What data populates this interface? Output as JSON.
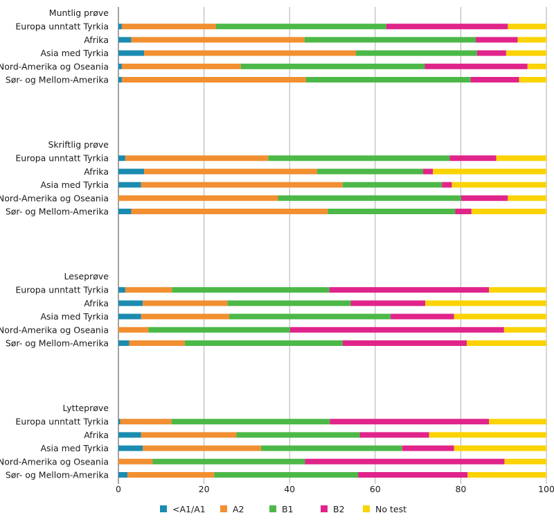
{
  "chart_data": {
    "type": "bar",
    "orientation": "horizontal",
    "stacked": true,
    "title": "",
    "xlabel": "",
    "ylabel": "",
    "xlim": [
      0,
      100
    ],
    "xticks": [
      0,
      20,
      40,
      60,
      80,
      100
    ],
    "grid": true,
    "legend_position": "bottom",
    "categories": [
      "Europa unntatt Tyrkia",
      "Afrika",
      "Asia med Tyrkia",
      "Nord-Amerika og Oseania",
      "Sør- og Mellom-Amerika"
    ],
    "series_meta": [
      {
        "name": "<A1/A1",
        "color": "#1b8bb0"
      },
      {
        "name": "A2",
        "color": "#f18f31"
      },
      {
        "name": "B1",
        "color": "#4cb848"
      },
      {
        "name": "B2",
        "color": "#e0248a"
      },
      {
        "name": "No test",
        "color": "#fbd304"
      }
    ],
    "groups": [
      {
        "title": "Muntlig prøve",
        "rows": [
          [
            0.8,
            22.0,
            39.8,
            28.4,
            9.0
          ],
          [
            3.0,
            40.5,
            40.0,
            9.8,
            6.7
          ],
          [
            6.0,
            49.5,
            28.3,
            6.8,
            9.4
          ],
          [
            0.8,
            27.8,
            43.0,
            24.0,
            4.4
          ],
          [
            0.8,
            43.0,
            38.5,
            11.3,
            6.4
          ]
        ]
      },
      {
        "title": "Skriftlig prøve",
        "rows": [
          [
            1.6,
            33.4,
            42.4,
            10.9,
            11.7
          ],
          [
            6.0,
            40.4,
            24.8,
            2.3,
            26.5
          ],
          [
            5.3,
            47.1,
            23.2,
            2.3,
            22.1
          ],
          [
            0.0,
            37.3,
            42.8,
            10.9,
            9.0
          ],
          [
            3.0,
            45.9,
            29.8,
            3.8,
            17.5
          ]
        ]
      },
      {
        "title": "Leseprøve",
        "rows": [
          [
            1.6,
            10.9,
            36.8,
            37.3,
            13.4
          ],
          [
            5.7,
            19.8,
            28.8,
            17.4,
            28.3
          ],
          [
            5.3,
            20.6,
            37.7,
            14.8,
            21.6
          ],
          [
            0.0,
            7.0,
            33.1,
            50.0,
            9.9
          ],
          [
            2.5,
            13.0,
            36.9,
            29.0,
            18.6
          ]
        ]
      },
      {
        "title": "Lytteprøve",
        "rows": [
          [
            0.4,
            12.0,
            37.0,
            37.2,
            13.4
          ],
          [
            5.3,
            22.3,
            28.8,
            16.2,
            27.4
          ],
          [
            5.7,
            27.6,
            33.0,
            12.1,
            21.6
          ],
          [
            0.0,
            8.0,
            35.6,
            46.6,
            9.8
          ],
          [
            2.1,
            20.3,
            33.6,
            25.6,
            18.4
          ]
        ]
      }
    ]
  }
}
